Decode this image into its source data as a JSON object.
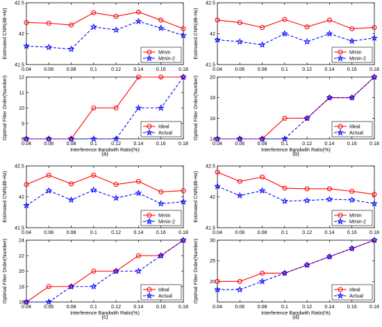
{
  "figure": {
    "panel_labels": [
      "(a)",
      "(b)",
      "(c)",
      "(d)"
    ],
    "xticks": [
      "0.04",
      "0.06",
      "0.08",
      "0.1",
      "0.12",
      "0.14",
      "0.16",
      "0.18"
    ],
    "colors": {
      "ideal_cnr": "#ff0000",
      "actual": "#0000ff"
    }
  },
  "chart_data": [
    {
      "type": "line",
      "panel": "(a)",
      "top": {
        "ylabel": "Estimated CNR(dB-Hz)",
        "ylim": [
          41.5,
          42.5
        ],
        "yticks": [
          "41.5",
          "42",
          "42.5"
        ],
        "x": [
          0.04,
          0.06,
          0.08,
          0.1,
          0.12,
          0.14,
          0.16,
          0.18
        ],
        "series": [
          {
            "name": "Mmin",
            "values": [
              42.18,
              42.17,
              42.14,
              42.34,
              42.28,
              42.35,
              42.22,
              42.08
            ]
          },
          {
            "name": "Mmin-2",
            "values": [
              41.8,
              41.78,
              41.75,
              42.11,
              42.06,
              42.2,
              42.09,
              41.97
            ]
          }
        ],
        "legend": "bottom-right"
      },
      "bottom": {
        "ylabel": "Optimal Filter Order(Number)",
        "xlabel": "Interference Bandwith Ratio(%)",
        "ylim": [
          8,
          12
        ],
        "yticks": [
          "8",
          "9",
          "10",
          "11",
          "12"
        ],
        "x": [
          0.04,
          0.06,
          0.08,
          0.1,
          0.12,
          0.14,
          0.16,
          0.18
        ],
        "series": [
          {
            "name": "Ideal",
            "values": [
              8,
              8,
              8,
              10,
              10,
              12,
              12,
              12
            ]
          },
          {
            "name": "Actual",
            "values": [
              8,
              8,
              8,
              8,
              8,
              10,
              10,
              12
            ]
          }
        ],
        "legend": "bottom-right"
      }
    },
    {
      "type": "line",
      "panel": "(b)",
      "top": {
        "ylabel": "Estimated CNR(dB-Hz)",
        "ylim": [
          41.5,
          42.5
        ],
        "yticks": [
          "41.5",
          "42",
          "42.5"
        ],
        "x": [
          0.04,
          0.06,
          0.08,
          0.1,
          0.12,
          0.14,
          0.16,
          0.18
        ],
        "series": [
          {
            "name": "Mmin",
            "values": [
              42.22,
              42.18,
              42.1,
              42.23,
              42.11,
              42.22,
              42.08,
              42.1
            ]
          },
          {
            "name": "Mmin-2",
            "values": [
              41.9,
              41.87,
              41.82,
              42.0,
              41.87,
              42.0,
              41.88,
              41.93
            ]
          }
        ],
        "legend": "bottom-right"
      },
      "bottom": {
        "ylabel": "Optimal Filter Order(Number)",
        "xlabel": "Interference Bandwith Ratio(%)",
        "ylim": [
          14,
          20
        ],
        "yticks": [
          "14",
          "16",
          "18",
          "20"
        ],
        "x": [
          0.04,
          0.06,
          0.08,
          0.1,
          0.12,
          0.14,
          0.16,
          0.18
        ],
        "series": [
          {
            "name": "Ideal",
            "values": [
              14,
              14,
              14,
              16,
              16,
              18,
              18,
              20
            ]
          },
          {
            "name": "Actual",
            "values": [
              14,
              14,
              14,
              14,
              16,
              18,
              18,
              20
            ]
          }
        ],
        "legend": "bottom-right"
      }
    },
    {
      "type": "line",
      "panel": "(c)",
      "top": {
        "ylabel": "Estimated CNR(dB-Hz)",
        "ylim": [
          41.5,
          42.5
        ],
        "yticks": [
          "41.5",
          "42",
          "42.5"
        ],
        "x": [
          0.04,
          0.06,
          0.08,
          0.1,
          0.12,
          0.14,
          0.16,
          0.18
        ],
        "series": [
          {
            "name": "Mmin",
            "values": [
              42.2,
              42.35,
              42.21,
              42.35,
              42.2,
              42.25,
              42.08,
              42.1
            ]
          },
          {
            "name": "Mmin-2",
            "values": [
              41.86,
              42.1,
              41.95,
              42.11,
              41.98,
              42.06,
              41.89,
              41.92
            ]
          }
        ],
        "legend": "bottom-right"
      },
      "bottom": {
        "ylabel": "Optimal Filter Order(Number)",
        "xlabel": "Interference Bandwith Ratio(%)",
        "ylim": [
          16,
          24
        ],
        "yticks": [
          "16",
          "18",
          "20",
          "22",
          "24"
        ],
        "x": [
          0.04,
          0.06,
          0.08,
          0.1,
          0.12,
          0.14,
          0.16,
          0.18
        ],
        "series": [
          {
            "name": "Ideal",
            "values": [
              16,
              18,
              18,
              20,
              20,
              22,
              22,
              24
            ]
          },
          {
            "name": "Actual",
            "values": [
              16,
              16,
              18,
              18,
              20,
              20,
              22,
              24
            ]
          }
        ],
        "legend": "bottom-right"
      }
    },
    {
      "type": "line",
      "panel": "(d)",
      "top": {
        "ylabel": "Estimated CNR(dB-Hz)",
        "ylim": [
          41.5,
          42.5
        ],
        "yticks": [
          "41.5",
          "42",
          "42.5"
        ],
        "x": [
          0.04,
          0.06,
          0.08,
          0.1,
          0.12,
          0.14,
          0.16,
          0.18
        ],
        "series": [
          {
            "name": "Mmin",
            "values": [
              42.4,
              42.25,
              42.32,
              42.14,
              42.13,
              42.13,
              42.09,
              42.04
            ]
          },
          {
            "name": "Mmin-2",
            "values": [
              42.17,
              42.02,
              42.1,
              41.93,
              41.94,
              41.96,
              41.95,
              41.89
            ]
          }
        ],
        "legend": "bottom-right"
      },
      "bottom": {
        "ylabel": "Optimal Filter Order(Number)",
        "xlabel": "Interference Bandwith Ratio(%)",
        "ylim": [
          15,
          30
        ],
        "yticks": [
          "20",
          "25",
          "30"
        ],
        "x": [
          0.04,
          0.06,
          0.08,
          0.1,
          0.12,
          0.14,
          0.16,
          0.18
        ],
        "series": [
          {
            "name": "Ideal",
            "values": [
              20,
              20,
              22,
              22,
              24,
              26,
              28,
              30
            ]
          },
          {
            "name": "Actual",
            "values": [
              18,
              18,
              20,
              22,
              24,
              26,
              28,
              30
            ]
          }
        ],
        "legend": "bottom-right"
      }
    }
  ]
}
